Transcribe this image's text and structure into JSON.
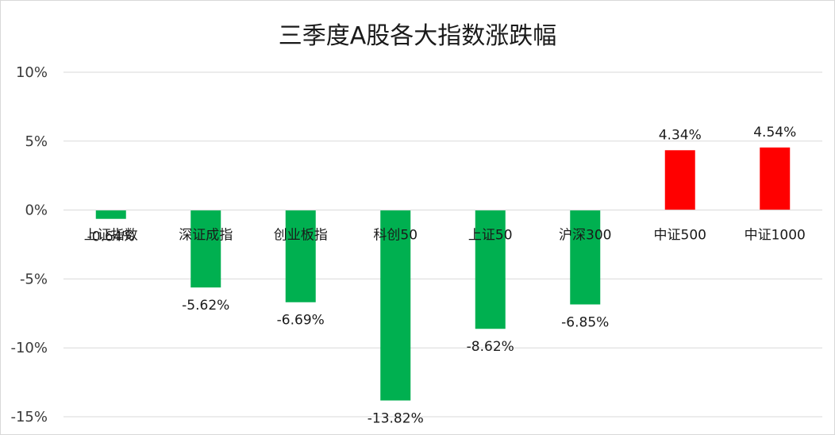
{
  "chart_data": {
    "type": "bar",
    "title": "三季度A股各大指数涨跌幅",
    "xlabel": "",
    "ylabel": "",
    "categories": [
      "上证指数",
      "深证成指",
      "创业板指",
      "科创50",
      "上证50",
      "沪深300",
      "中证500",
      "中证1000"
    ],
    "values": [
      -0.64,
      -5.62,
      -6.69,
      -13.82,
      -8.62,
      -6.85,
      4.34,
      4.54
    ],
    "data_labels": [
      "-0.64%",
      "-5.62%",
      "-6.69%",
      "-13.82%",
      "-8.62%",
      "-6.85%",
      "4.34%",
      "4.54%"
    ],
    "ylim": [
      -15,
      10
    ],
    "yticks": [
      10,
      5,
      0,
      -5,
      -10,
      -15
    ],
    "ytick_labels": [
      "10%",
      "5%",
      "0%",
      "-5%",
      "-10%",
      "-15%"
    ],
    "grid": true,
    "legend": false,
    "colors": {
      "negative": "#00b050",
      "positive": "#ff0000",
      "grid": "#d9d9d9",
      "axis": "#d9d9d9"
    }
  }
}
